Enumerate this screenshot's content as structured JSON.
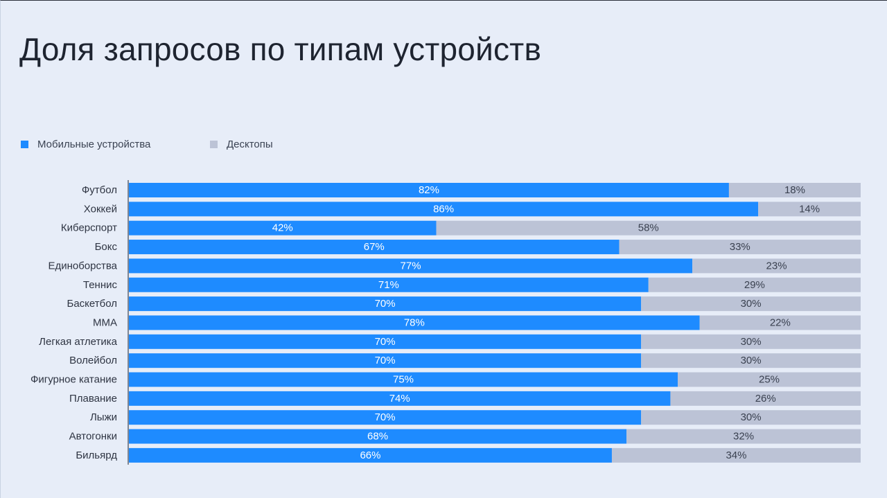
{
  "colors": {
    "mobile": "#1e8bff",
    "desktop": "#bcc3d6",
    "label_on_mobile": "#ffffff",
    "label_on_desktop": "#3a4150",
    "category_text": "#2e3442",
    "axis": "#3d4350"
  },
  "chart_data": {
    "type": "bar",
    "orientation": "horizontal",
    "stacked": true,
    "title": "Доля запросов по типам устройств",
    "xlim": [
      0,
      100
    ],
    "legend_position": "top-left",
    "categories": [
      "Футбол",
      "Хоккей",
      "Киберспорт",
      "Бокс",
      "Единоборства",
      "Теннис",
      "Баскетбол",
      "MMA",
      "Легкая атлетика",
      "Волейбол",
      "Фигурное катание",
      "Плавание",
      "Лыжи",
      "Автогонки",
      "Бильярд"
    ],
    "series": [
      {
        "name": "Мобильные устройства",
        "values": [
          82,
          86,
          42,
          67,
          77,
          71,
          70,
          78,
          70,
          70,
          75,
          74,
          70,
          68,
          66
        ],
        "labels": [
          "82%",
          "86%",
          "42%",
          "67%",
          "77%",
          "71%",
          "70%",
          "78%",
          "70%",
          "70%",
          "75%",
          "74%",
          "70%",
          "68%",
          "66%"
        ]
      },
      {
        "name": "Десктопы",
        "values": [
          18,
          14,
          58,
          33,
          23,
          29,
          30,
          22,
          30,
          30,
          25,
          26,
          30,
          32,
          34
        ],
        "labels": [
          "18%",
          "14%",
          "58%",
          "33%",
          "23%",
          "29%",
          "30%",
          "22%",
          "30%",
          "30%",
          "25%",
          "26%",
          "30%",
          "32%",
          "34%"
        ]
      }
    ]
  }
}
